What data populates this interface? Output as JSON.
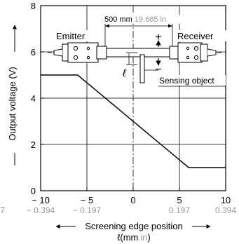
{
  "chart_data": {
    "type": "line",
    "xlabel": "Screening edge position",
    "xlabel_unit_prefix": "ℓ(mm",
    "xlabel_unit_secondary": "in",
    "xlabel_unit_suffix": ")",
    "ylabel": "Output voltage (V)",
    "xlim": [
      -10,
      10
    ],
    "ylim": [
      0,
      8
    ],
    "grid": true,
    "x_ticks": [
      -10,
      -5,
      0,
      5,
      10
    ],
    "x_tick_labels": [
      "− 10",
      "− 5",
      "0",
      "5",
      "10"
    ],
    "x_tick_labels_inch": [
      "− 0.394",
      "− 0.197",
      "0.197",
      "0.394"
    ],
    "y_ticks": [
      0,
      2,
      4,
      6,
      8
    ],
    "y_tick_labels": [
      "0",
      "2",
      "4",
      "6",
      "8"
    ],
    "cutoff_label_left": "7",
    "series": [
      {
        "x": [
          -10,
          -6,
          6,
          10
        ],
        "y": [
          5,
          5,
          1,
          1
        ]
      }
    ],
    "annotations": {
      "emitter": "Emitter",
      "receiver": "Receiver",
      "distance_mm": "500 mm",
      "distance_in": "19.685 in",
      "ell": "ℓ",
      "sensing_object": "Sensing object",
      "plus": "+",
      "minus": "−"
    }
  }
}
